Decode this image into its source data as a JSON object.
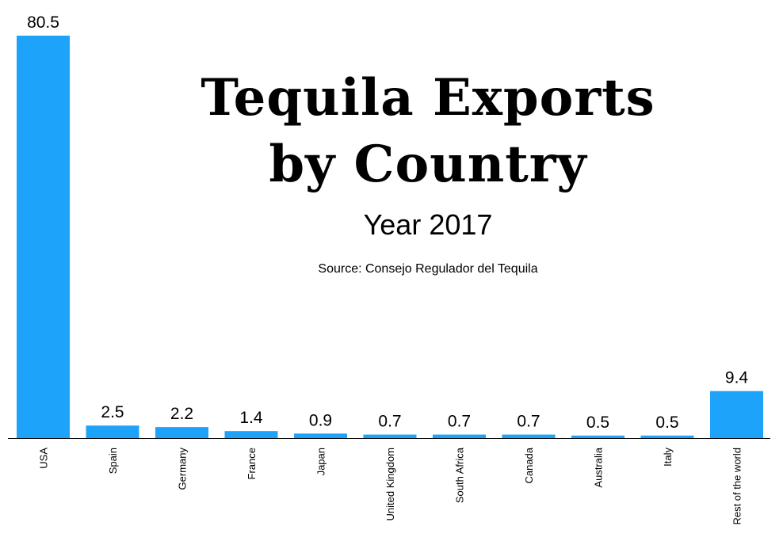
{
  "chart_data": {
    "type": "bar",
    "title_lines": [
      "Tequila Exports",
      "by Country"
    ],
    "subtitle": "Year 2017",
    "source": "Source: Consejo Regulador del Tequila",
    "categories": [
      "USA",
      "Spain",
      "Germany",
      "France",
      "Japan",
      "United Kingdom",
      "South Africa",
      "Canada",
      "Australia",
      "Italy",
      "Rest of the world"
    ],
    "values": [
      80.5,
      2.5,
      2.2,
      1.4,
      0.9,
      0.7,
      0.7,
      0.7,
      0.5,
      0.5,
      9.4
    ],
    "value_labels": [
      "80.5",
      "2.5",
      "2.2",
      "1.4",
      "0.9",
      "0.7",
      "0.7",
      "0.7",
      "0.5",
      "0.5",
      "9.4"
    ],
    "xlabel": "",
    "ylabel": "",
    "ylim": [
      0,
      80.5
    ],
    "grid": false,
    "bar_color": "#1EA3FA",
    "axis_color": "#000000"
  }
}
